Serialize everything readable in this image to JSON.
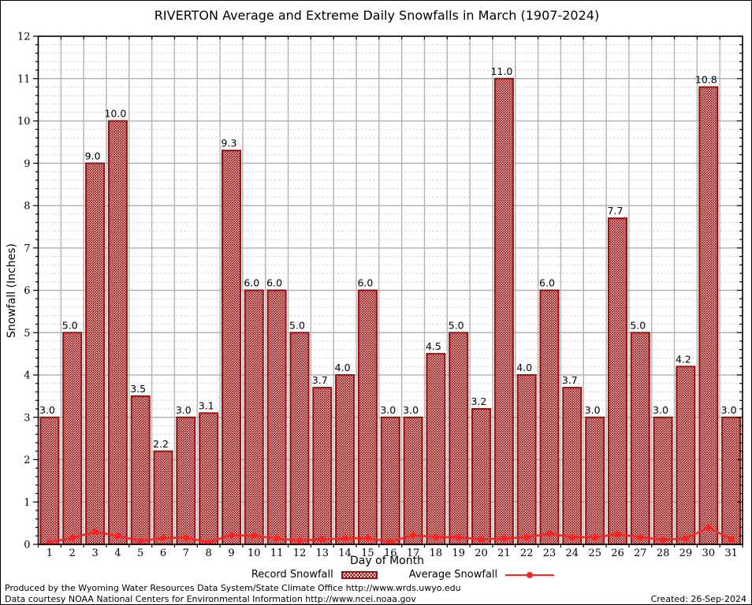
{
  "title": "RIVERTON Average and Extreme Daily Snowfalls in March (1907-2024)",
  "chart_data": {
    "type": "bar",
    "title": "RIVERTON Average and Extreme Daily Snowfalls in March (1907-2024)",
    "xlabel": "Day of Month",
    "ylabel": "Snowfall (Inches)",
    "ylim": [
      0,
      12
    ],
    "y_major_step": 1,
    "y_minor_step": 0.2,
    "grid": true,
    "legend_position": "bottom",
    "categories": [
      1,
      2,
      3,
      4,
      5,
      6,
      7,
      8,
      9,
      10,
      11,
      12,
      13,
      14,
      15,
      16,
      17,
      18,
      19,
      20,
      21,
      22,
      23,
      24,
      25,
      26,
      27,
      28,
      29,
      30,
      31
    ],
    "series": [
      {
        "name": "Record Snowfall",
        "type": "bar",
        "color": "#991111",
        "value_labels": true,
        "values": [
          3.0,
          5.0,
          9.0,
          10.0,
          3.5,
          2.2,
          3.0,
          3.1,
          9.3,
          6.0,
          6.0,
          5.0,
          3.7,
          4.0,
          6.0,
          3.0,
          3.0,
          4.5,
          5.0,
          3.2,
          11.0,
          4.0,
          6.0,
          3.7,
          3.0,
          7.7,
          5.0,
          3.0,
          4.2,
          10.8,
          3.0
        ]
      },
      {
        "name": "Average Snowfall",
        "type": "line",
        "color": "#ff2222",
        "values": [
          0.05,
          0.15,
          0.3,
          0.2,
          0.08,
          0.15,
          0.16,
          0.05,
          0.22,
          0.2,
          0.14,
          0.09,
          0.12,
          0.14,
          0.15,
          0.06,
          0.22,
          0.17,
          0.17,
          0.12,
          0.14,
          0.17,
          0.25,
          0.17,
          0.17,
          0.24,
          0.17,
          0.11,
          0.14,
          0.4,
          0.12
        ]
      }
    ]
  },
  "colors": {
    "bar_edge": "#991111",
    "bar_hatch": "#9b1b1b",
    "line": "#ff2222",
    "grid_major": "#b3b3b3",
    "grid_minor": "#c8c8c8",
    "frame": "#000000"
  },
  "footer": {
    "line1": "Produced by the Wyoming Water Resources Data System/State Climate Office http://www.wrds.uwyo.edu",
    "line2": "Data courtesy NOAA National Centers for Environmental Information http://www.ncei.noaa.gov",
    "created": "Created: 26-Sep-2024"
  }
}
